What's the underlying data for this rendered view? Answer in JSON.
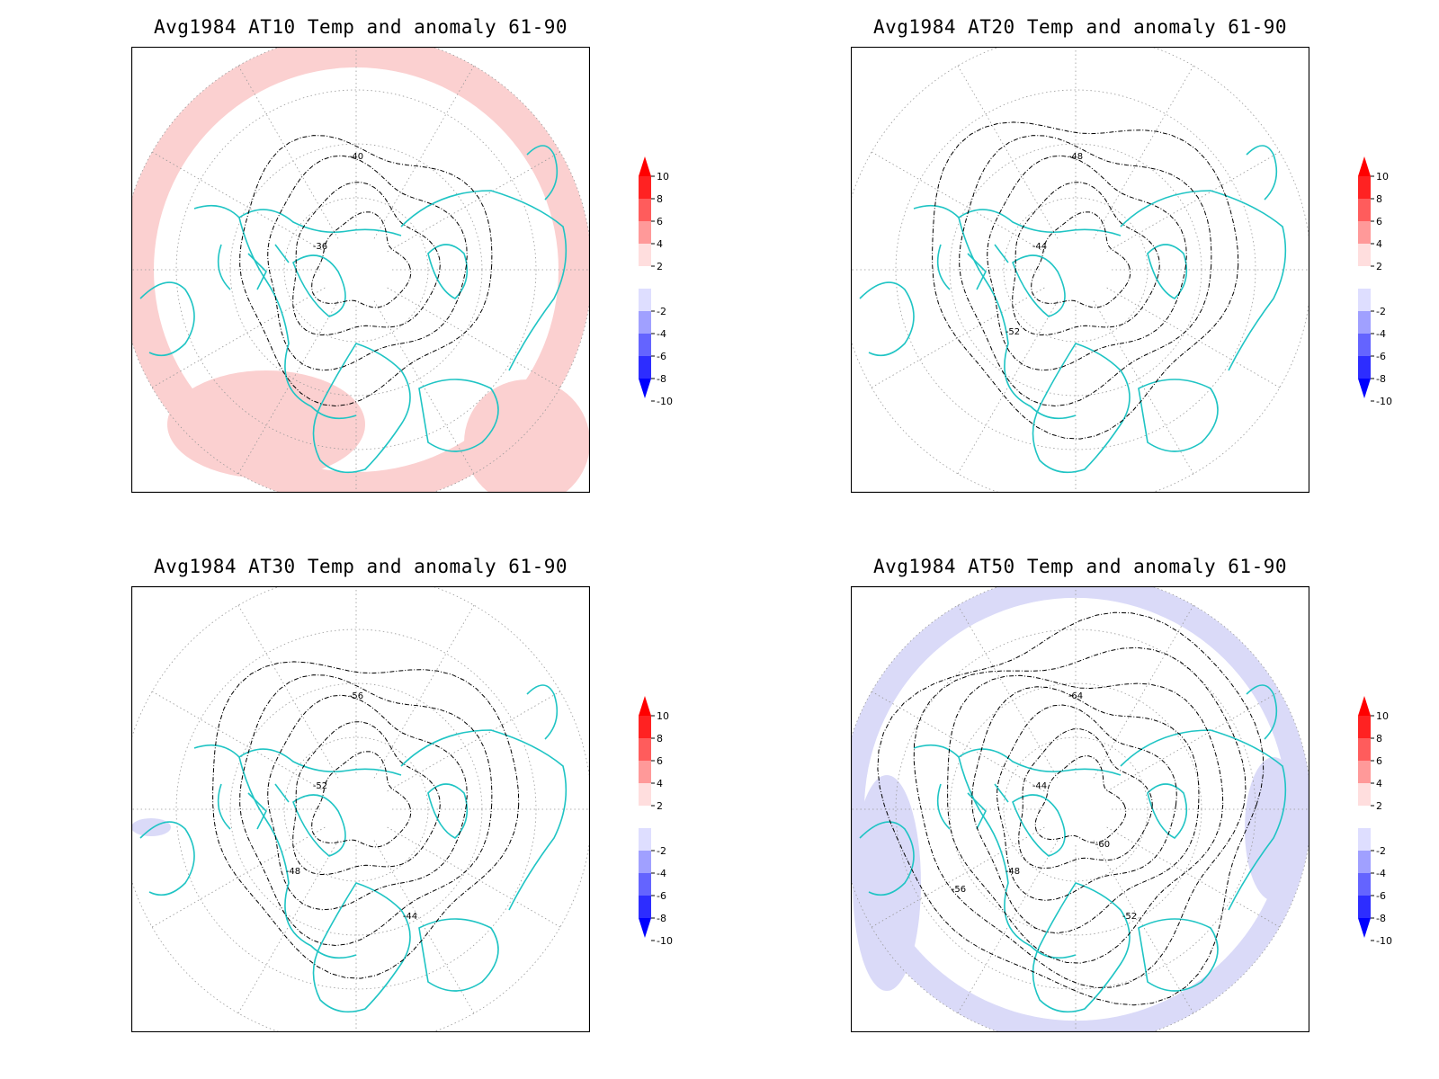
{
  "panels": [
    {
      "title": "Avg1984 AT10 Temp and anomaly 61-90",
      "anomaly_sign": "positive",
      "contour_labels": [
        "-40",
        "-36"
      ],
      "colorbar_ticks": [
        "10",
        "8",
        "6",
        "4",
        "2",
        "-2",
        "-4",
        "-6",
        "-8",
        "-10"
      ]
    },
    {
      "title": "Avg1984 AT20 Temp and anomaly 61-90",
      "anomaly_sign": "none",
      "contour_labels": [
        "-48",
        "-44",
        "-52"
      ],
      "colorbar_ticks": [
        "10",
        "8",
        "6",
        "4",
        "2",
        "-2",
        "-4",
        "-6",
        "-8",
        "-10"
      ]
    },
    {
      "title": "Avg1984 AT30 Temp and anomaly 61-90",
      "anomaly_sign": "negative-small",
      "contour_labels": [
        "-56",
        "-52",
        "-48",
        "-44"
      ],
      "colorbar_ticks": [
        "10",
        "8",
        "6",
        "4",
        "2",
        "-2",
        "-4",
        "-6",
        "-8",
        "-10"
      ]
    },
    {
      "title": "Avg1984 AT50 Temp and anomaly 61-90",
      "anomaly_sign": "negative",
      "contour_labels": [
        "-64",
        "-44",
        "-48",
        "-52",
        "-56",
        "-60"
      ],
      "colorbar_ticks": [
        "10",
        "8",
        "6",
        "4",
        "2",
        "-2",
        "-4",
        "-6",
        "-8",
        "-10"
      ]
    }
  ],
  "colors": {
    "coast": "#1fc4c4",
    "positive_anomaly": "#fbd0d0",
    "negative_anomaly": "#dadaf8",
    "contour": "#000000",
    "scale": [
      "#ff0000",
      "#ff2222",
      "#ff5c5c",
      "#ff9999",
      "#ffdede",
      "#ffffff",
      "#dedeff",
      "#a0a0ff",
      "#6464ff",
      "#2d2dff",
      "#0000ff"
    ]
  }
}
